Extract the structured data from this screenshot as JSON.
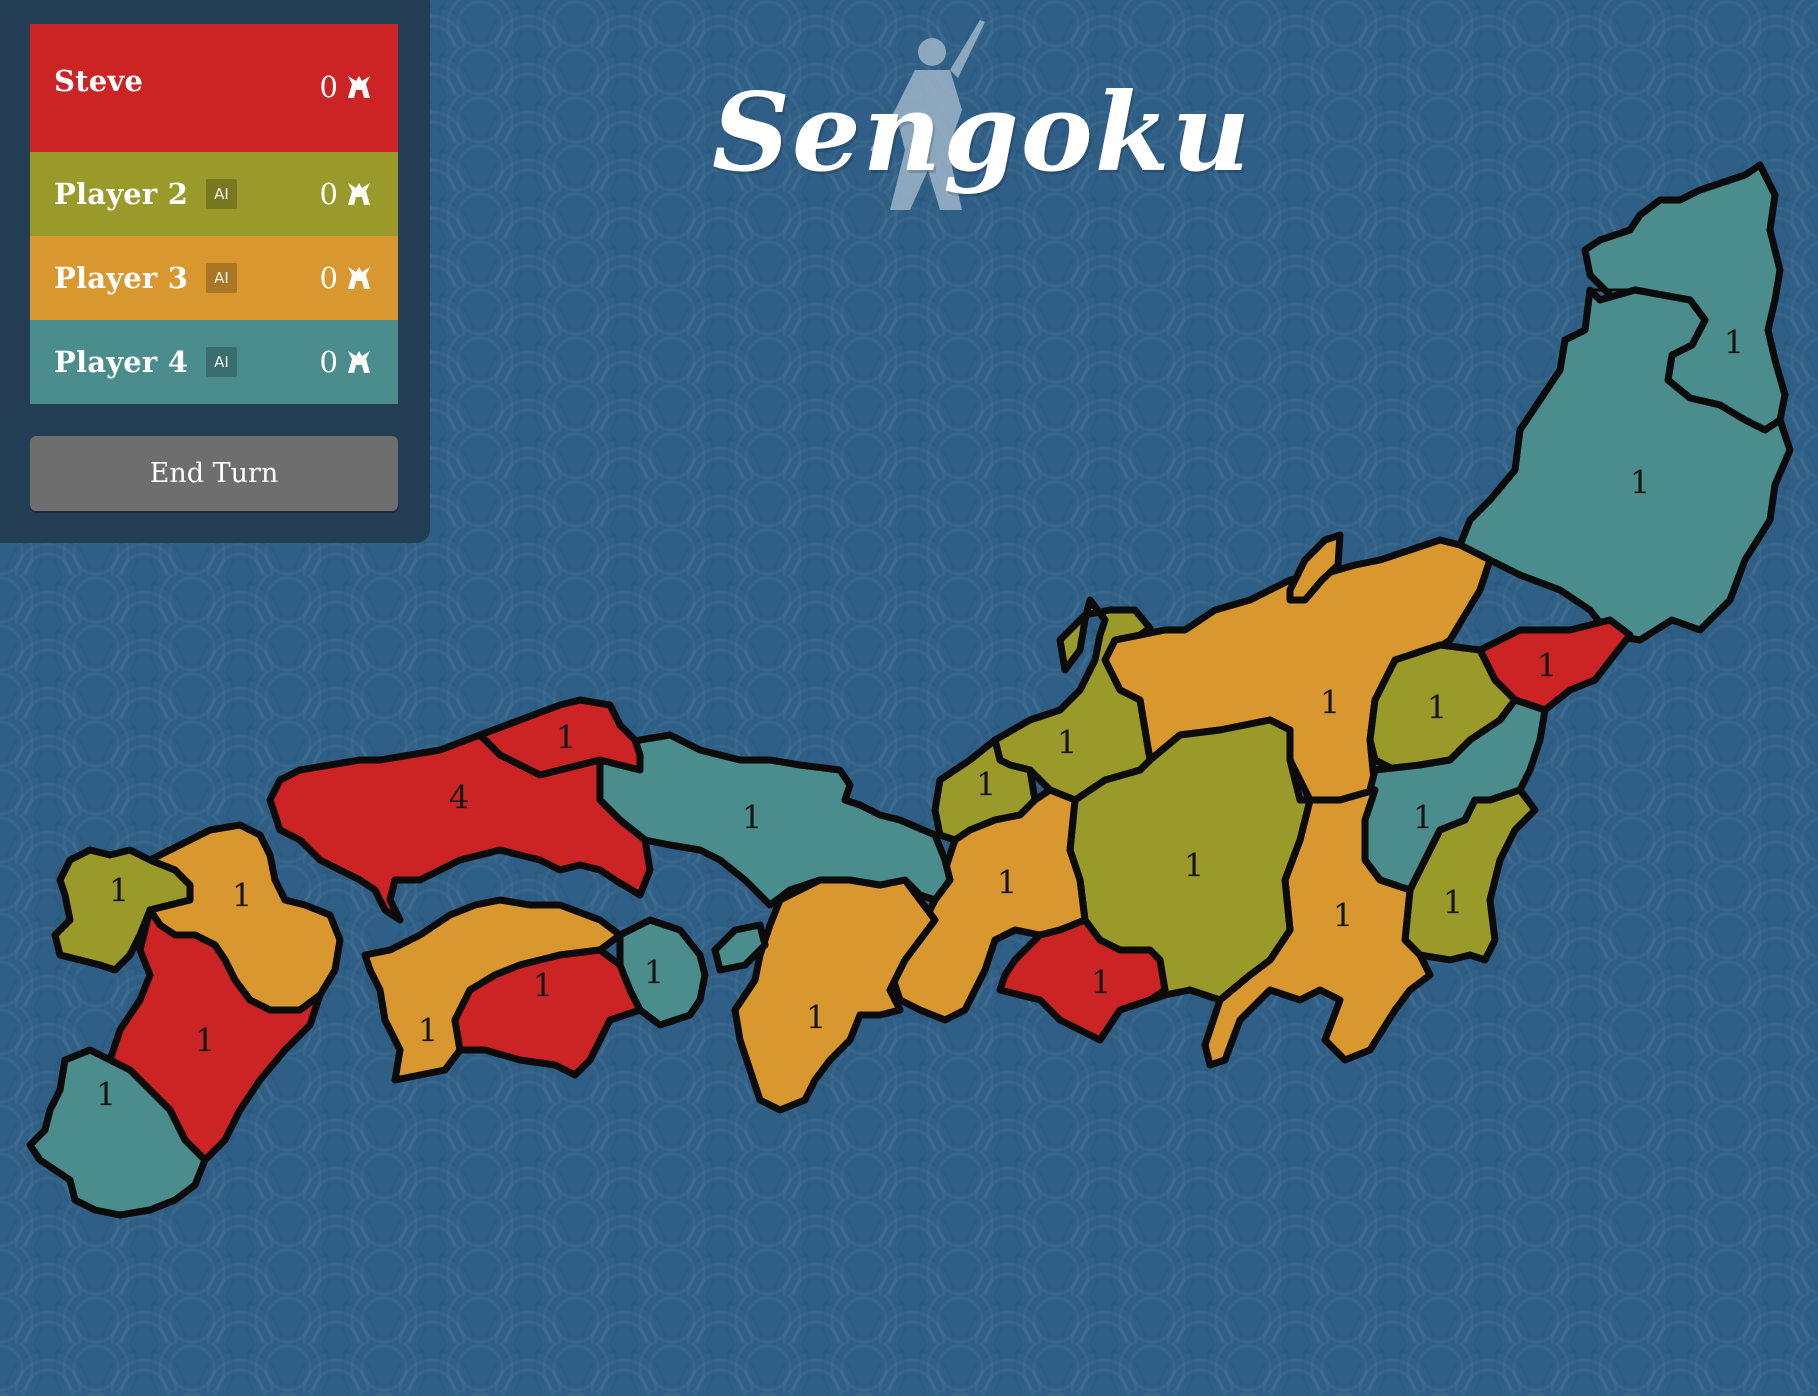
{
  "app": {
    "title": "Sengoku"
  },
  "colors": {
    "steve": "#cc2424",
    "player2": "#999a2a",
    "player3": "#d8982f",
    "player4": "#4b8c8c",
    "sea": "#2f5f86",
    "panel": "#223d54",
    "end_turn": "#6e6e6e"
  },
  "players": [
    {
      "name": "Steve",
      "is_ai": false,
      "ai_label": "",
      "score": "0",
      "icon": "samurai-helmet-icon"
    },
    {
      "name": "Player 2",
      "is_ai": true,
      "ai_label": "AI",
      "score": "0",
      "icon": "samurai-helmet-icon"
    },
    {
      "name": "Player 3",
      "is_ai": true,
      "ai_label": "AI",
      "score": "0",
      "icon": "samurai-helmet-icon"
    },
    {
      "name": "Player 4",
      "is_ai": true,
      "ai_label": "AI",
      "score": "0",
      "icon": "samurai-helmet-icon"
    }
  ],
  "controls": {
    "end_turn_label": "End Turn"
  },
  "map": {
    "regions": [
      {
        "id": "mutsu-north",
        "owner": "player4",
        "armies": "1"
      },
      {
        "id": "mutsu-south",
        "owner": "player4",
        "armies": "1"
      },
      {
        "id": "hitachi",
        "owner": "steve",
        "armies": "1"
      },
      {
        "id": "echigo",
        "owner": "player3",
        "armies": "1"
      },
      {
        "id": "kozuke",
        "owner": "player2",
        "armies": "1"
      },
      {
        "id": "musashi",
        "owner": "player4",
        "armies": "1"
      },
      {
        "id": "shimosa",
        "owner": "player2",
        "armies": "1"
      },
      {
        "id": "kai",
        "owner": "player3",
        "armies": "1"
      },
      {
        "id": "shinano",
        "owner": "player2",
        "armies": "1"
      },
      {
        "id": "suruga",
        "owner": "steve",
        "armies": "1"
      },
      {
        "id": "noto",
        "owner": "player2",
        "armies": "1"
      },
      {
        "id": "kaga",
        "owner": "player2",
        "armies": "1"
      },
      {
        "id": "mino",
        "owner": "player3",
        "armies": "1"
      },
      {
        "id": "kii",
        "owner": "player3",
        "armies": "1"
      },
      {
        "id": "tango",
        "owner": "player4",
        "armies": "1"
      },
      {
        "id": "awaji",
        "owner": "player4",
        "armies": ""
      },
      {
        "id": "izumo",
        "owner": "steve",
        "armies": "1"
      },
      {
        "id": "aki",
        "owner": "steve",
        "armies": "4"
      },
      {
        "id": "sanuki",
        "owner": "player4",
        "armies": "1"
      },
      {
        "id": "tosa",
        "owner": "steve",
        "armies": "1"
      },
      {
        "id": "iyo",
        "owner": "player3",
        "armies": "1"
      },
      {
        "id": "hizen",
        "owner": "player2",
        "armies": "1"
      },
      {
        "id": "bungo",
        "owner": "player3",
        "armies": "1"
      },
      {
        "id": "higo",
        "owner": "steve",
        "armies": "1"
      },
      {
        "id": "satsuma",
        "owner": "player4",
        "armies": "1"
      }
    ]
  }
}
